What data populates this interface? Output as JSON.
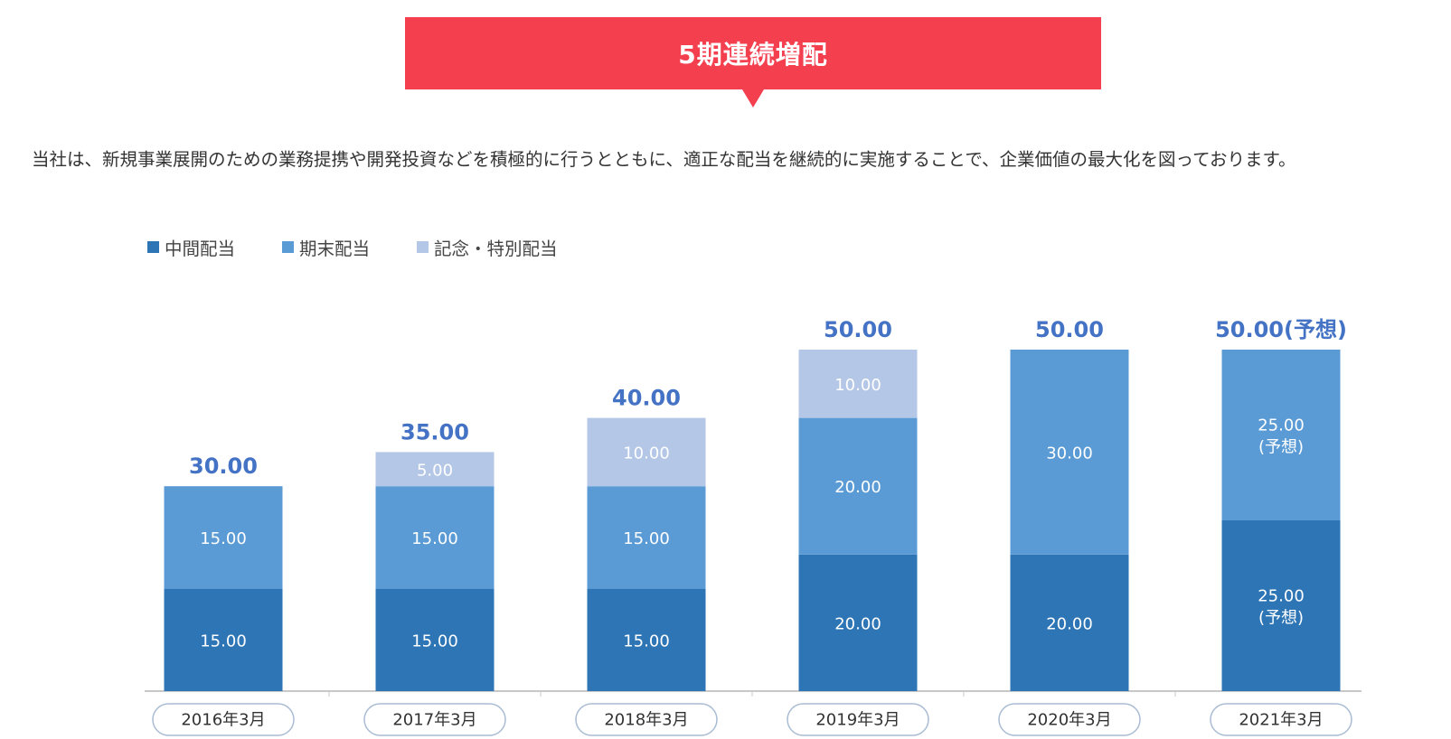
{
  "banner": {
    "title": "5期連続増配"
  },
  "description": "当社は、新規事業展開のための業務提携や開発投資などを積極的に行うとともに、適正な配当を継続的に実施することで、企業価値の最大化を図っております。",
  "colors": {
    "banner": "#f43f4f",
    "interim": "#2e75b6",
    "year_end": "#5b9bd5",
    "special": "#b4c7e7",
    "total_label": "#4472c4"
  },
  "chart_data": {
    "type": "bar",
    "stacked": true,
    "categories": [
      "2016年3月",
      "2017年3月",
      "2018年3月",
      "2019年3月",
      "2020年3月",
      "2021年3月"
    ],
    "series": [
      {
        "name": "中間配当",
        "color": "#2e75b6",
        "values": [
          15,
          15,
          15,
          20,
          20,
          25
        ],
        "labels": [
          "15.00",
          "15.00",
          "15.00",
          "20.00",
          "20.00",
          "25.00\n(予想)"
        ]
      },
      {
        "name": "期末配当",
        "color": "#5b9bd5",
        "values": [
          15,
          15,
          15,
          20,
          30,
          25
        ],
        "labels": [
          "15.00",
          "15.00",
          "15.00",
          "20.00",
          "30.00",
          "25.00\n(予想)"
        ]
      },
      {
        "name": "記念・特別配当",
        "color": "#b4c7e7",
        "values": [
          0,
          5,
          10,
          10,
          0,
          0
        ],
        "labels": [
          "",
          "5.00",
          "10.00",
          "10.00",
          "",
          ""
        ]
      }
    ],
    "totals": [
      "30.00",
      "35.00",
      "40.00",
      "50.00",
      "50.00",
      "50.00(予想)"
    ],
    "ylim": [
      0,
      50
    ],
    "legend_position": "top-left",
    "grid": false
  }
}
